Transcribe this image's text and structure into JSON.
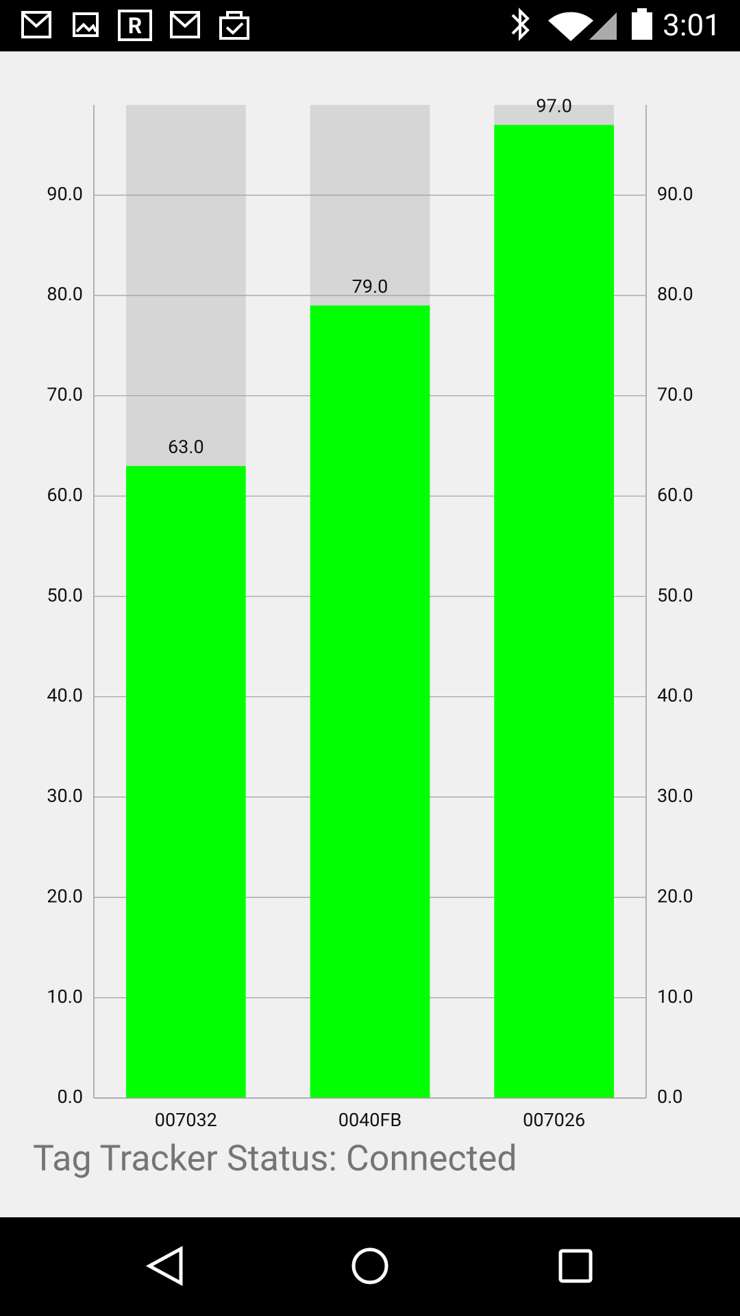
{
  "status_bar": {
    "time": "3:01"
  },
  "chart_data": {
    "type": "bar",
    "categories": [
      "007032",
      "0040FB",
      "007026"
    ],
    "values": [
      63,
      79,
      97
    ],
    "value_labels": [
      "63.0",
      "79.0",
      "97.0"
    ],
    "color": "#00ff00",
    "background_color": "#d6d6d6",
    "ylim": [
      0,
      99
    ],
    "yticks": [
      {
        "value": 0,
        "label": "0.0"
      },
      {
        "value": 10,
        "label": "10.0"
      },
      {
        "value": 20,
        "label": "20.0"
      },
      {
        "value": 30,
        "label": "30.0"
      },
      {
        "value": 40,
        "label": "40.0"
      },
      {
        "value": 50,
        "label": "50.0"
      },
      {
        "value": 60,
        "label": "60.0"
      },
      {
        "value": 70,
        "label": "70.0"
      },
      {
        "value": 80,
        "label": "80.0"
      },
      {
        "value": 90,
        "label": "90.0"
      }
    ],
    "grid": true
  },
  "status": "Tag Tracker Status: Connected"
}
